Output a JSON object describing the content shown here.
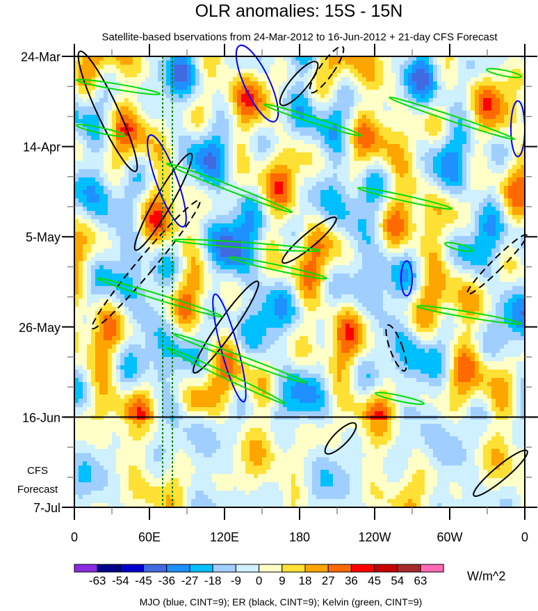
{
  "chart_data": {
    "type": "heatmap",
    "title": "OLR anomalies: 15S - 15N",
    "subtitle": "Satellite-based bservations from 24-Mar-2012 to 16-Jun-2012 + 21-day CFS Forecast",
    "x_ticks": [
      "0",
      "60E",
      "120E",
      "180",
      "120W",
      "60W",
      "0"
    ],
    "x_range_deg": [
      0,
      360
    ],
    "y_ticks": [
      "24-Mar",
      "14-Apr",
      "5-May",
      "26-May",
      "16-Jun",
      "7-Jul"
    ],
    "y_range_days": [
      0,
      105
    ],
    "forecast_start_day": 84,
    "forecast_label": [
      "CFS",
      "Forecast"
    ],
    "colorbar": {
      "levels": [
        "-63",
        "-54",
        "-45",
        "-36",
        "-27",
        "-18",
        "-9",
        "0",
        "9",
        "18",
        "27",
        "36",
        "45",
        "54",
        "63"
      ],
      "colors": [
        "#8a2be2",
        "#00008b",
        "#0000cd",
        "#4169e1",
        "#1e90ff",
        "#00bfff",
        "#a0cfff",
        "#cff0ff",
        "#ffffc8",
        "#ffe135",
        "#ffa500",
        "#ff6a00",
        "#ff0000",
        "#c80000",
        "#a52a2a",
        "#ff69b4"
      ],
      "units": "W/m^2"
    },
    "contour_legend": "MJO (blue, CINT=9); ER (black, CINT=9); Kelvin (green, CINT=9)",
    "series": [
      {
        "name": "MJO",
        "color": "#0000ff"
      },
      {
        "name": "ER",
        "color": "#000000"
      },
      {
        "name": "Kelvin",
        "color": "#00dd00"
      }
    ]
  }
}
